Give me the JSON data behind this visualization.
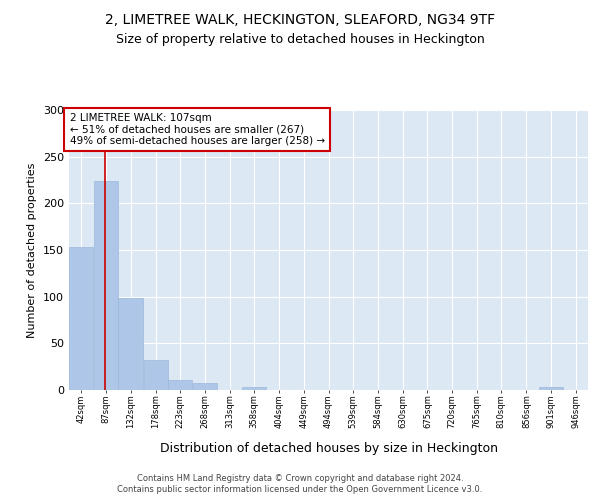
{
  "title1": "2, LIMETREE WALK, HECKINGTON, SLEAFORD, NG34 9TF",
  "title2": "Size of property relative to detached houses in Heckington",
  "xlabel": "Distribution of detached houses by size in Heckington",
  "ylabel": "Number of detached properties",
  "bar_edges": [
    42,
    87,
    132,
    178,
    223,
    268,
    313,
    358,
    404,
    449,
    494,
    539,
    584,
    630,
    675,
    720,
    765,
    810,
    856,
    901,
    946
  ],
  "bar_heights": [
    153,
    224,
    99,
    32,
    11,
    7,
    0,
    3,
    0,
    0,
    0,
    0,
    0,
    0,
    0,
    0,
    0,
    0,
    0,
    3,
    0
  ],
  "bar_color": "#aec6e8",
  "bar_edge_color": "#9ab8d8",
  "property_size": 107,
  "vline_color": "#cc0000",
  "annotation_text": "2 LIMETREE WALK: 107sqm\n← 51% of detached houses are smaller (267)\n49% of semi-detached houses are larger (258) →",
  "annotation_box_color": "#ffffff",
  "annotation_box_edge": "#cc0000",
  "ylim": [
    0,
    300
  ],
  "yticks": [
    0,
    50,
    100,
    150,
    200,
    250,
    300
  ],
  "footer1": "Contains HM Land Registry data © Crown copyright and database right 2024.",
  "footer2": "Contains public sector information licensed under the Open Government Licence v3.0.",
  "plot_background": "#dde8f5",
  "title1_fontsize": 10,
  "title2_fontsize": 9,
  "tick_labels": [
    "42sqm",
    "87sqm",
    "132sqm",
    "178sqm",
    "223sqm",
    "268sqm",
    "313sqm",
    "358sqm",
    "404sqm",
    "449sqm",
    "494sqm",
    "539sqm",
    "584sqm",
    "630sqm",
    "675sqm",
    "720sqm",
    "765sqm",
    "810sqm",
    "856sqm",
    "901sqm",
    "946sqm"
  ]
}
